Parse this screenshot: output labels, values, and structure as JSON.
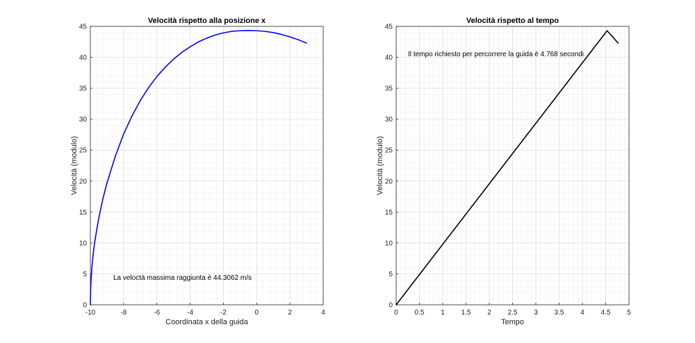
{
  "chart_data": [
    {
      "type": "line",
      "title": "Velocità rispetto alla posizione x",
      "xlabel": "Coordinata x della guida",
      "ylabel": "Velocità (modulo)",
      "xlim": [
        -10,
        4
      ],
      "ylim": [
        0,
        45
      ],
      "xticks": [
        -10,
        -8,
        -6,
        -4,
        -2,
        0,
        2,
        4
      ],
      "yticks": [
        0,
        5,
        10,
        15,
        20,
        25,
        30,
        35,
        40,
        45
      ],
      "xtick_labels": [
        "-10",
        "-8",
        "-6",
        "-4",
        "-2",
        "0",
        "2",
        "4"
      ],
      "ytick_labels": [
        "0",
        "5",
        "10",
        "15",
        "20",
        "25",
        "30",
        "35",
        "40",
        "45"
      ],
      "grid": true,
      "color": "#0000ff",
      "annotation": "La veloctà massima raggiunta è 44.3062 m/s",
      "series": [
        {
          "x": [
            -10,
            -9.98,
            -9.95,
            -9.9,
            -9.8,
            -9.7,
            -9.5,
            -9.25,
            -9,
            -8.5,
            -8,
            -7.5,
            -7,
            -6.5,
            -6,
            -5.5,
            -5,
            -4.5,
            -4,
            -3.5,
            -3,
            -2.5,
            -2,
            -1.5,
            -1,
            -0.5,
            0,
            0.5,
            1,
            1.5,
            2,
            2.5,
            3
          ],
          "y": [
            0,
            2.8,
            4.4,
            6.3,
            8.9,
            10.8,
            13.9,
            17.1,
            19.7,
            24.0,
            27.6,
            30.5,
            33.0,
            35.1,
            36.9,
            38.4,
            39.7,
            40.8,
            41.7,
            42.5,
            43.1,
            43.6,
            43.95,
            44.2,
            44.3,
            44.33,
            44.3,
            44.2,
            44.0,
            43.7,
            43.3,
            42.85,
            42.3
          ]
        }
      ]
    },
    {
      "type": "line",
      "title": "Velocità rispetto al tempo",
      "xlabel": "Tempo",
      "ylabel": "Velocità (modulo)",
      "xlim": [
        0,
        5
      ],
      "ylim": [
        0,
        45
      ],
      "xticks": [
        0,
        0.5,
        1,
        1.5,
        2,
        2.5,
        3,
        3.5,
        4,
        4.5,
        5
      ],
      "yticks": [
        0,
        5,
        10,
        15,
        20,
        25,
        30,
        35,
        40,
        45
      ],
      "xtick_labels": [
        "0",
        "0.5",
        "1",
        "1.5",
        "2",
        "2.5",
        "3",
        "3.5",
        "4",
        "4.5",
        "5"
      ],
      "ytick_labels": [
        "0",
        "5",
        "10",
        "15",
        "20",
        "25",
        "30",
        "35",
        "40",
        "45"
      ],
      "grid": true,
      "color": "#000000",
      "annotation": "Il tempo richiesto per percorrere la guida è 4.768 secondi",
      "series": [
        {
          "x": [
            0,
            4.53,
            4.768
          ],
          "y": [
            0,
            44.3,
            42.3
          ]
        }
      ]
    }
  ]
}
